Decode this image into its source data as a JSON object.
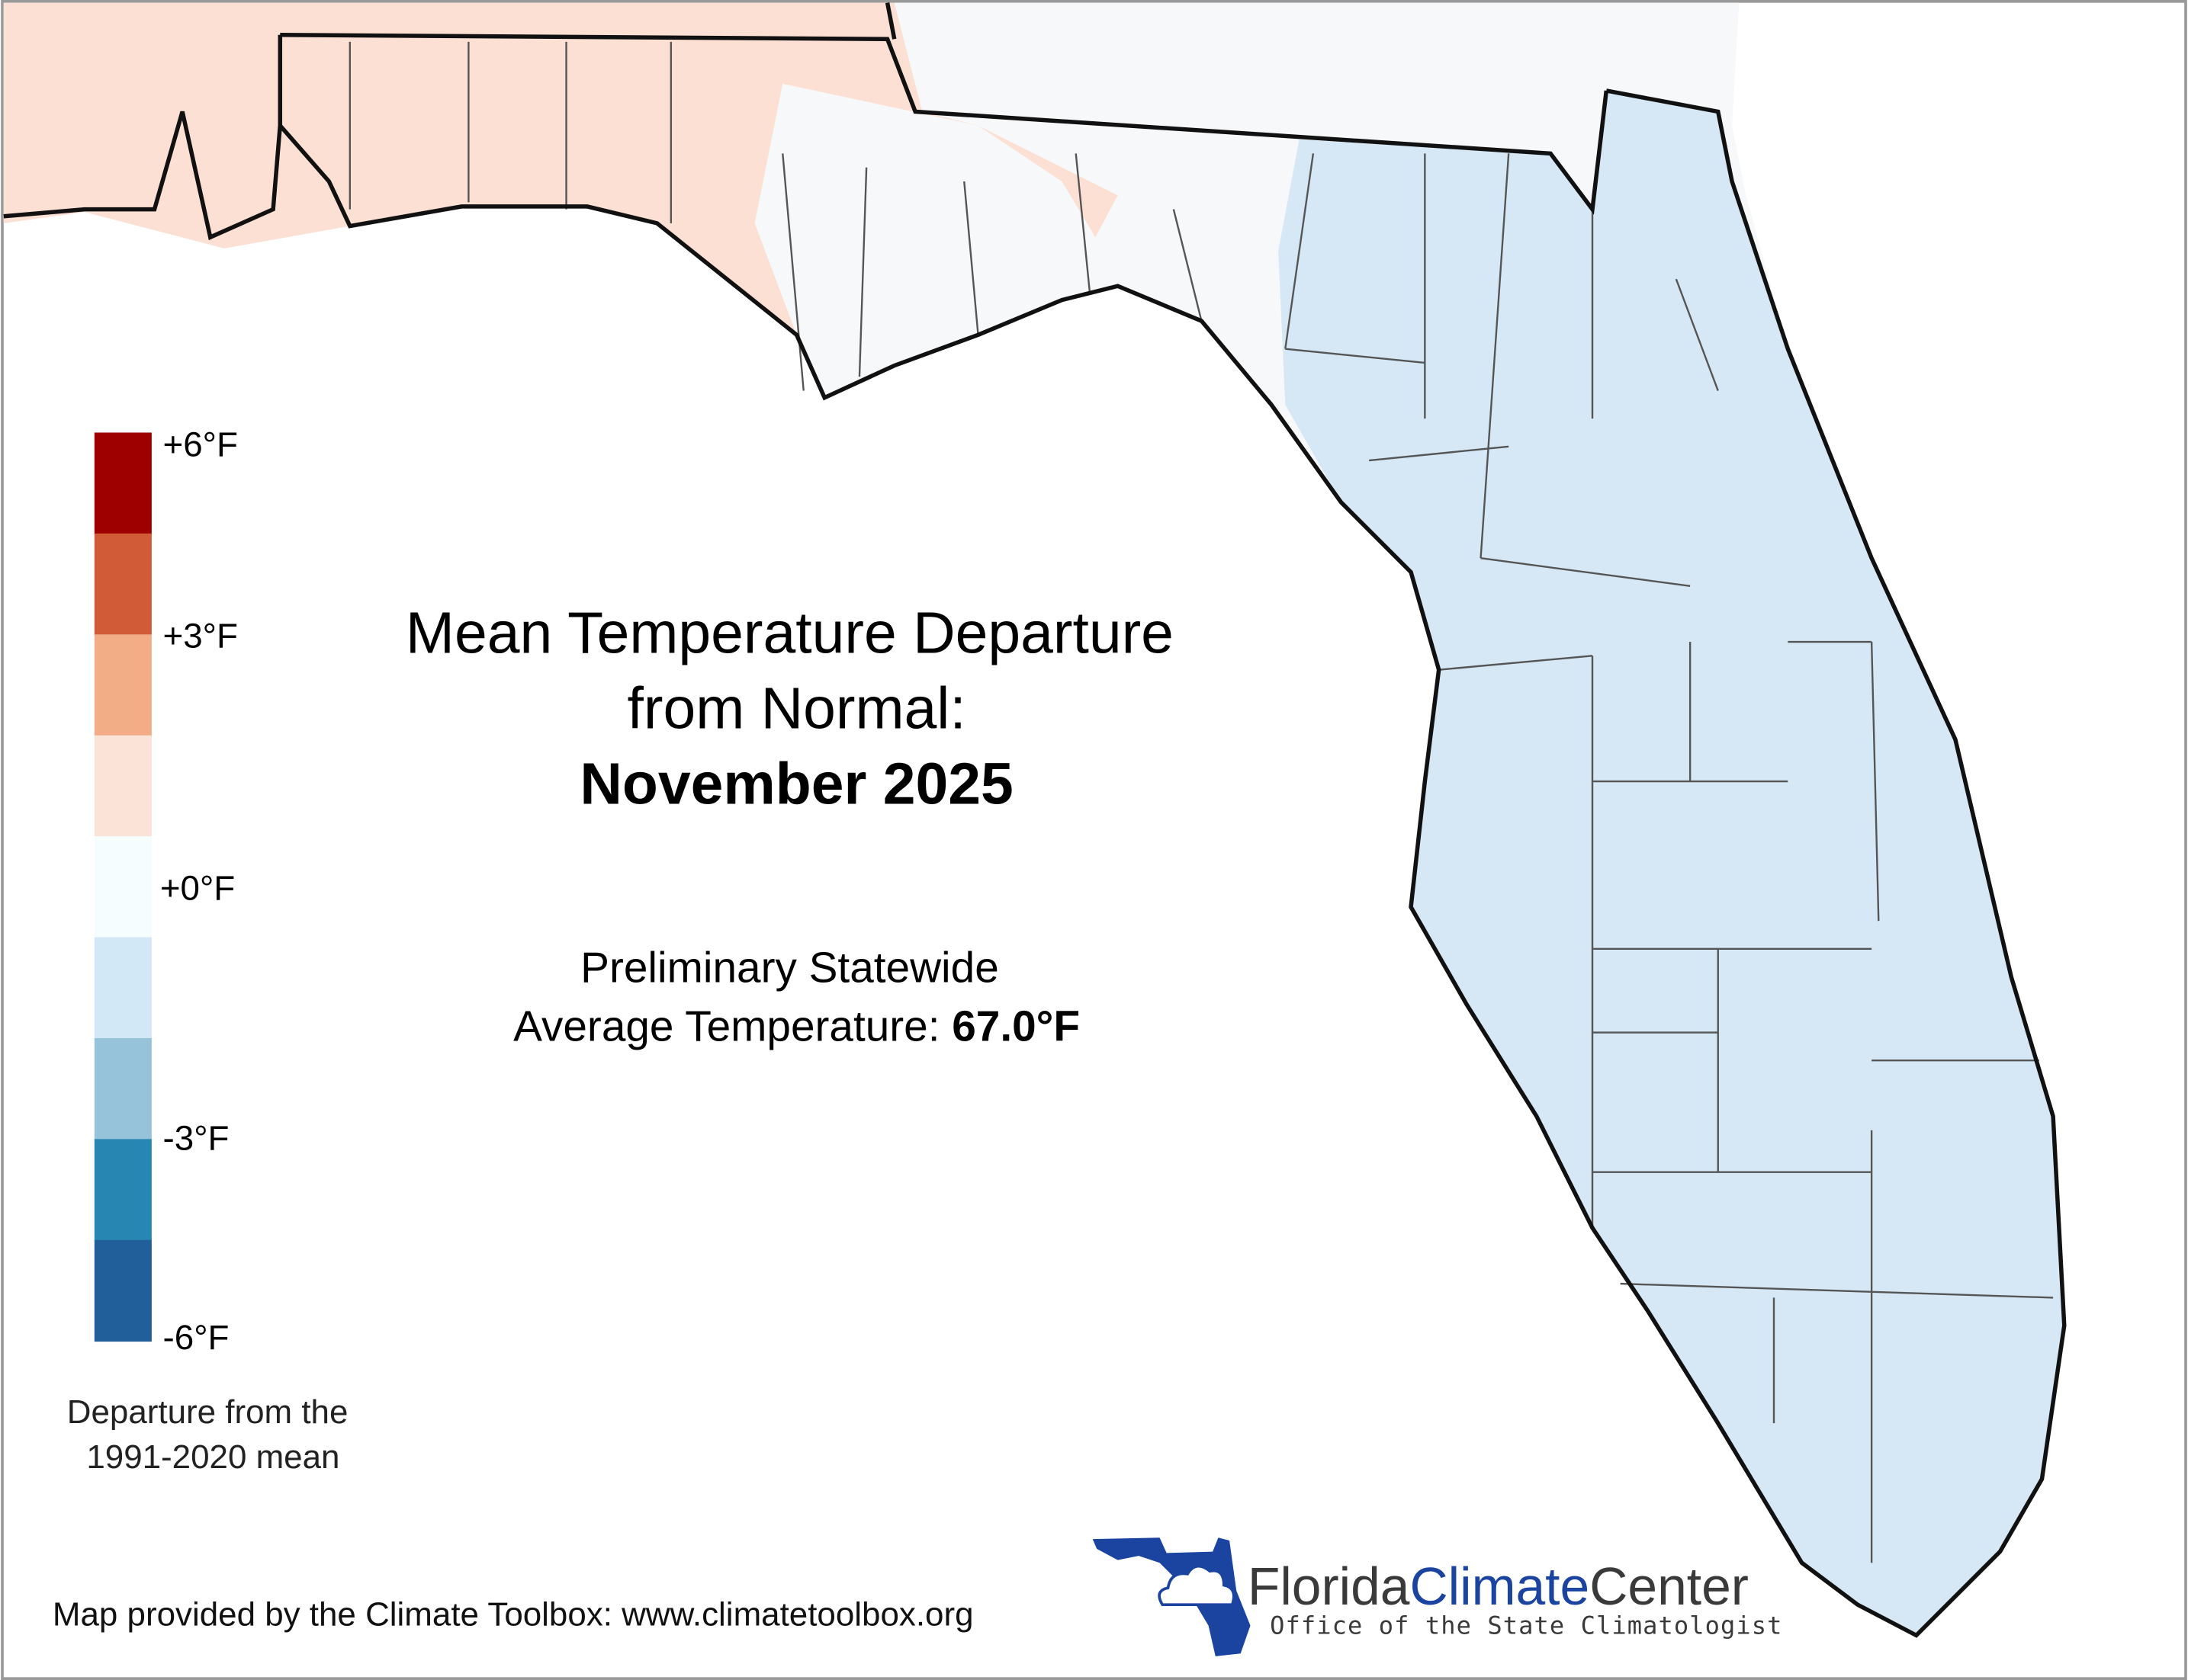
{
  "title": {
    "line1": "Mean Temperature Departure",
    "line2": "from Normal:",
    "line3": "November 2025"
  },
  "statewide": {
    "line1": "Preliminary Statewide",
    "line2_prefix": "Average Temperature: ",
    "value": "67.0°F"
  },
  "legend": {
    "colors": [
      "#9e0000",
      "#d05b36",
      "#f2ac86",
      "#fce3d7",
      "#f6fdff",
      "#d3e8f6",
      "#96c2da",
      "#2886b3",
      "#215f9b"
    ],
    "labels": [
      "+6°F",
      "+3°F",
      "+0°F",
      "-3°F",
      "-6°F"
    ],
    "caption_line1": "Departure from the",
    "caption_line2": "1991-2020 mean"
  },
  "footer": {
    "credit": "Map provided by the Climate Toolbox: www.climatetoolbox.org"
  },
  "logo": {
    "name_part1": "Florida",
    "name_part2": "Climate",
    "name_part3": "Center",
    "subtitle": "Office of the State Climatologist",
    "brand_color": "#1a44a0"
  },
  "map_colors": {
    "warm": "#fce0d4",
    "neutral": "#f6f8f9",
    "cool": "#d6e8f5"
  }
}
